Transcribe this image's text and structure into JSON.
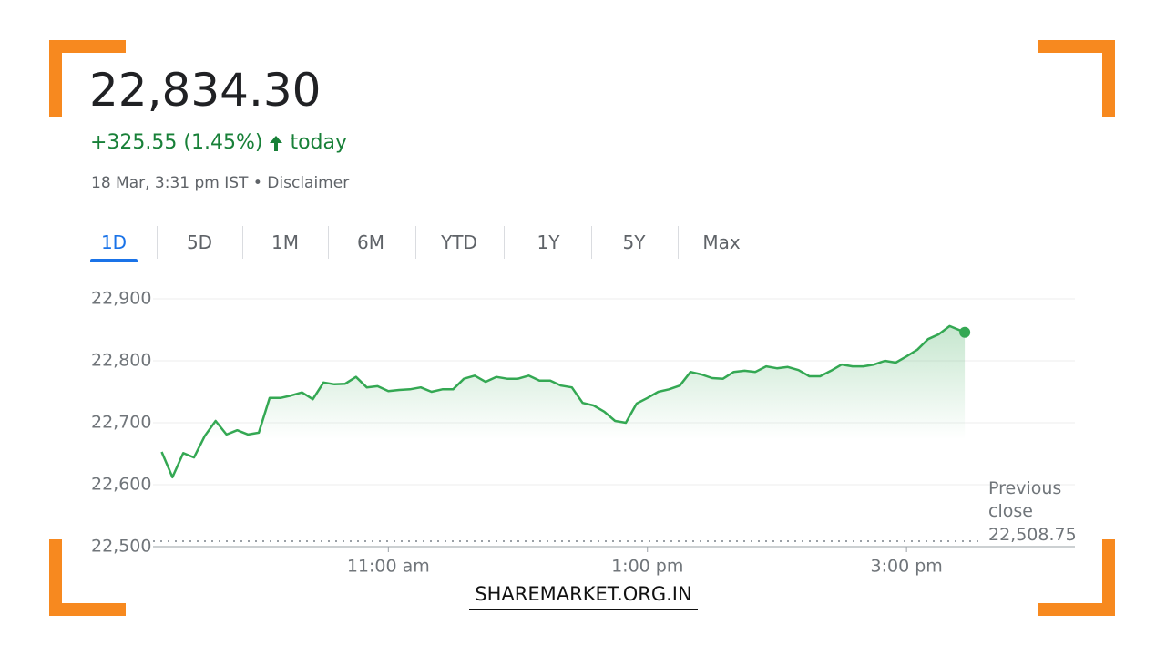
{
  "header": {
    "price": "22,834.30",
    "change": "+325.55 (1.45%)",
    "period": "today",
    "timestamp": "18 Mar, 3:31 pm IST",
    "separator": "•",
    "disclaimer": "Disclaimer"
  },
  "tabs": {
    "items": [
      "1D",
      "5D",
      "1M",
      "6M",
      "YTD",
      "1Y",
      "5Y",
      "Max"
    ],
    "selected": 0
  },
  "watermark": "SHAREMARKET.ORG.IN",
  "chart_data": {
    "type": "line",
    "color": "#34a853",
    "x": [
      555,
      560,
      565,
      570,
      575,
      580,
      585,
      590,
      595,
      600,
      605,
      610,
      615,
      620,
      625,
      630,
      635,
      640,
      645,
      650,
      655,
      660,
      665,
      670,
      675,
      680,
      685,
      690,
      695,
      700,
      705,
      710,
      715,
      720,
      725,
      730,
      735,
      740,
      745,
      750,
      755,
      760,
      765,
      770,
      775,
      780,
      785,
      790,
      795,
      800,
      805,
      810,
      815,
      820,
      825,
      830,
      835,
      840,
      845,
      850,
      855,
      860,
      865,
      870,
      875,
      880,
      885,
      890,
      895,
      900,
      905,
      910,
      915,
      920,
      927
    ],
    "values": [
      22653,
      22612,
      22651,
      22644,
      22679,
      22703,
      22681,
      22688,
      22681,
      22684,
      22740,
      22740,
      22744,
      22749,
      22738,
      22765,
      22762,
      22763,
      22774,
      22757,
      22759,
      22751,
      22753,
      22754,
      22757,
      22750,
      22754,
      22754,
      22771,
      22776,
      22766,
      22774,
      22771,
      22771,
      22776,
      22768,
      22768,
      22760,
      22757,
      22732,
      22728,
      22718,
      22703,
      22700,
      22731,
      22740,
      22750,
      22754,
      22760,
      22782,
      22778,
      22772,
      22771,
      22782,
      22784,
      22782,
      22791,
      22788,
      22790,
      22785,
      22775,
      22775,
      22784,
      22794,
      22791,
      22791,
      22794,
      22800,
      22797,
      22807,
      22818,
      22835,
      22843,
      22856,
      22846
    ],
    "xlim": [
      551,
      978
    ],
    "xticks": [
      {
        "value": 660,
        "label": "11:00 am"
      },
      {
        "value": 780,
        "label": "1:00 pm"
      },
      {
        "value": 900,
        "label": "3:00 pm"
      }
    ],
    "ylim": [
      22500,
      22900
    ],
    "yticks": [
      {
        "value": 22900,
        "label": "22,900"
      },
      {
        "value": 22800,
        "label": "22,800"
      },
      {
        "value": 22700,
        "label": "22,700"
      },
      {
        "value": 22600,
        "label": "22,600"
      },
      {
        "value": 22500,
        "label": "22,500"
      }
    ],
    "grid": true,
    "previous_close": {
      "value": 22508.75,
      "label": "22,508.75",
      "caption": "Previous close"
    }
  }
}
